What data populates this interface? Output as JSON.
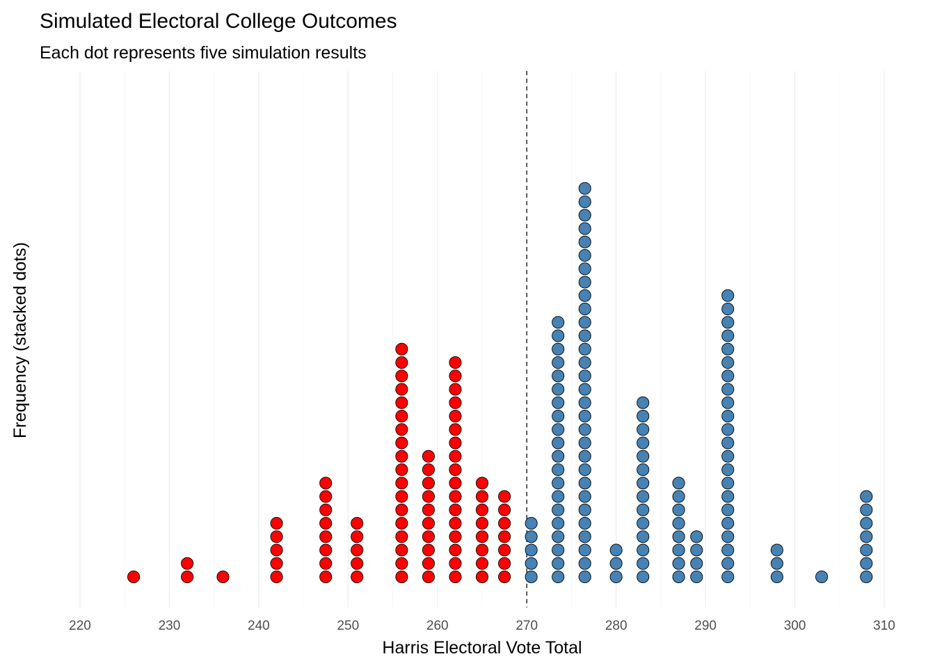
{
  "chart_data": {
    "type": "dotplot",
    "title": "Simulated Electoral College Outcomes",
    "subtitle": "Each dot represents five simulation results",
    "xlabel": "Harris Electoral Vote Total",
    "ylabel": "Frequency (stacked dots)",
    "xlim": [
      220,
      310
    ],
    "x_ticks": [
      220,
      230,
      240,
      250,
      260,
      270,
      280,
      290,
      300,
      310
    ],
    "reference_line": {
      "x": 270,
      "style": "dashed"
    },
    "colors": {
      "below_270": "#ff0000",
      "at_or_above_270": "#4682b4"
    },
    "grid": {
      "vertical": true,
      "horizontal": false
    },
    "points": [
      {
        "x": 226,
        "count": 1
      },
      {
        "x": 232,
        "count": 2
      },
      {
        "x": 236,
        "count": 1
      },
      {
        "x": 242,
        "count": 5
      },
      {
        "x": 247.5,
        "count": 8
      },
      {
        "x": 251,
        "count": 5
      },
      {
        "x": 256,
        "count": 18
      },
      {
        "x": 259,
        "count": 10
      },
      {
        "x": 262,
        "count": 17
      },
      {
        "x": 265,
        "count": 8
      },
      {
        "x": 267.5,
        "count": 7
      },
      {
        "x": 270.5,
        "count": 5
      },
      {
        "x": 273.5,
        "count": 20
      },
      {
        "x": 276.5,
        "count": 30
      },
      {
        "x": 280,
        "count": 3
      },
      {
        "x": 283,
        "count": 14
      },
      {
        "x": 287,
        "count": 8
      },
      {
        "x": 289,
        "count": 4
      },
      {
        "x": 292.5,
        "count": 22
      },
      {
        "x": 298,
        "count": 3
      },
      {
        "x": 303,
        "count": 1
      },
      {
        "x": 308,
        "count": 7
      }
    ]
  }
}
